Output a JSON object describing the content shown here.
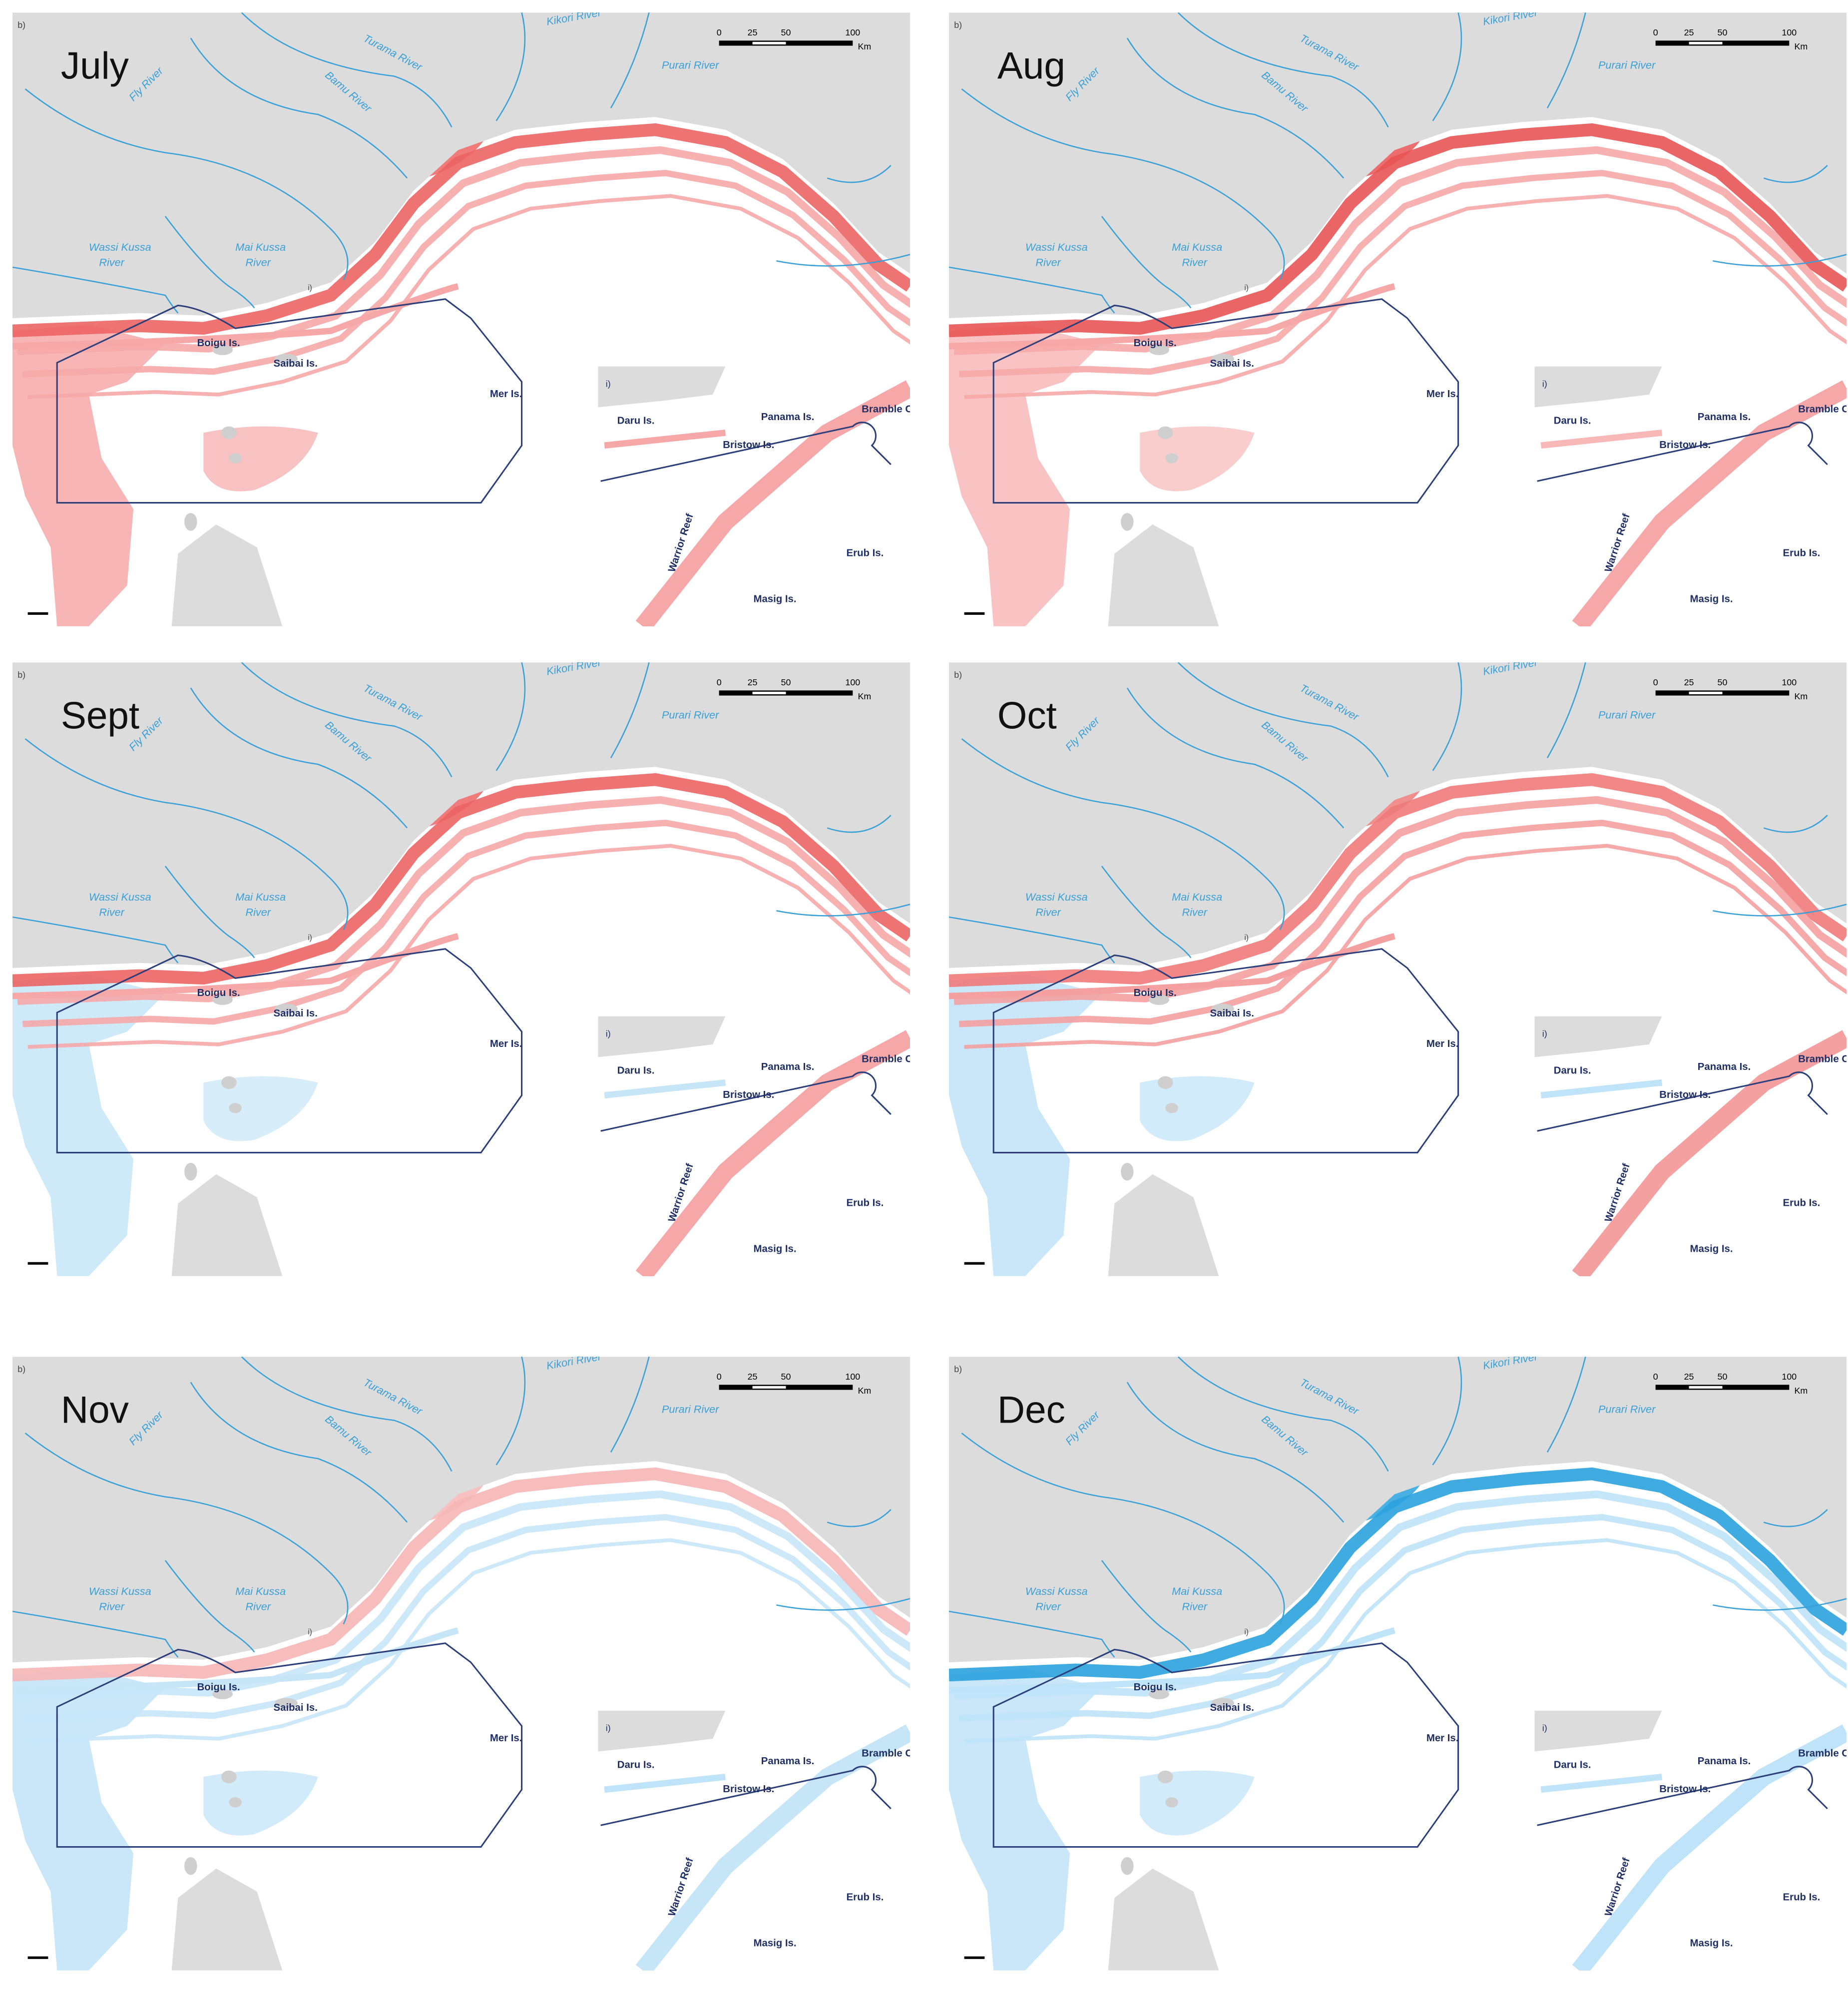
{
  "panel_tag": "b)",
  "scale_bar": {
    "ticks": [
      0,
      25,
      50,
      100
    ],
    "unit": "Km"
  },
  "rivers": [
    {
      "name": [
        "Turama River"
      ]
    },
    {
      "name": [
        "Kikori River"
      ]
    },
    {
      "name": [
        "Bamu River"
      ]
    },
    {
      "name": [
        "Purari River"
      ]
    },
    {
      "name": [
        "Fly River"
      ]
    },
    {
      "name": [
        "Wassi Kussa",
        "River"
      ]
    },
    {
      "name": [
        "Mai Kussa",
        "River"
      ]
    }
  ],
  "islands": [
    {
      "name": "Boigu Is."
    },
    {
      "name": "Saibai Is."
    },
    {
      "name": "Mer Is."
    }
  ],
  "inset": {
    "tag": "i)",
    "labels": [
      {
        "name": "Daru Is."
      },
      {
        "name": "Panama Is."
      },
      {
        "name": "Bramble Cay"
      },
      {
        "name": "Bristow Is."
      },
      {
        "name": "Warrior Reef"
      },
      {
        "name": "Erub Is."
      },
      {
        "name": "Masig Is."
      }
    ]
  },
  "panels": [
    {
      "month": "July",
      "colors": {
        "coast": "#f6a8a8",
        "core": "#ec6464",
        "west": "#f6a8a8"
      }
    },
    {
      "month": "Aug",
      "colors": {
        "coast": "#f6a8a8",
        "core": "#e85454",
        "west": "#f8b8b8"
      }
    },
    {
      "month": "Sept",
      "colors": {
        "coast": "#f6a8a8",
        "core": "#ec6464",
        "west": "#c6e6f8"
      }
    },
    {
      "month": "Oct",
      "colors": {
        "coast": "#f4a0a0",
        "core": "#ef7a7a",
        "west": "#bfe3f8"
      }
    },
    {
      "month": "Nov",
      "colors": {
        "coast": "#c6e6f8",
        "core": "#f6b6b6",
        "west": "#bfe3f8"
      }
    },
    {
      "month": "Dec",
      "colors": {
        "coast": "#bfe3f8",
        "core": "#2aa2de",
        "west": "#bfe3f8"
      }
    }
  ]
}
